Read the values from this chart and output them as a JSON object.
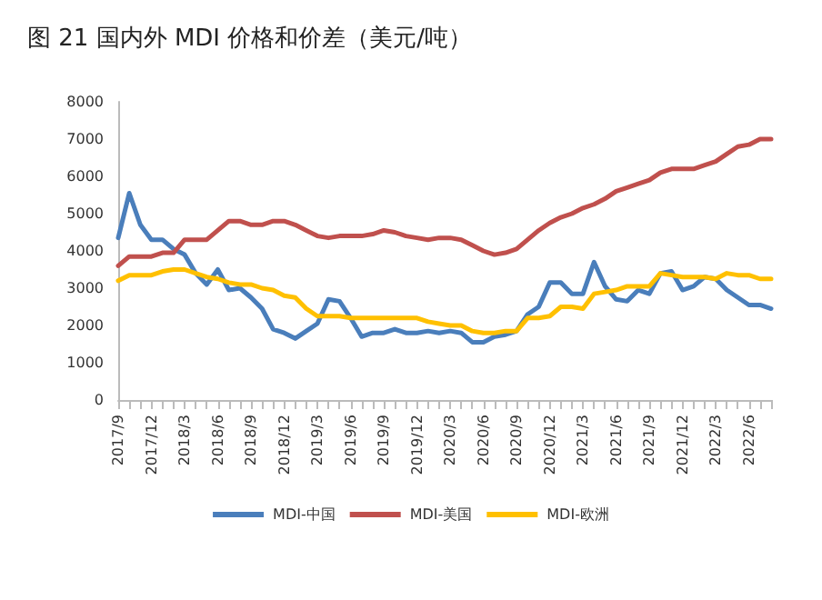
{
  "chart_data": {
    "type": "line",
    "title": "图 21 国内外 MDI 价格和价差（美元/吨）",
    "categories": [
      "2017/9",
      null,
      null,
      "2017/12",
      null,
      null,
      "2018/3",
      null,
      null,
      "2018/6",
      null,
      null,
      "2018/9",
      null,
      null,
      "2018/12",
      null,
      null,
      "2019/3",
      null,
      null,
      "2019/6",
      null,
      null,
      "2019/9",
      null,
      null,
      "2019/12",
      null,
      null,
      "2020/3",
      null,
      null,
      "2020/6",
      null,
      null,
      "2020/9",
      null,
      null,
      "2020/12",
      null,
      null,
      "2021/3",
      null,
      null,
      "2021/6",
      null,
      null,
      "2021/9",
      null,
      null,
      "2021/12",
      null,
      null,
      "2022/3",
      null,
      null,
      "2022/6",
      null,
      null
    ],
    "series": [
      {
        "name": "MDI-中国",
        "color": "#4a7ebb",
        "values": [
          4350,
          5550,
          4700,
          4300,
          4300,
          4050,
          3900,
          3400,
          3100,
          3500,
          2950,
          3000,
          2750,
          2450,
          1900,
          1800,
          1650,
          1850,
          2050,
          2700,
          2650,
          2200,
          1700,
          1800,
          1800,
          1900,
          1800,
          1800,
          1850,
          1800,
          1850,
          1800,
          1550,
          1550,
          1700,
          1750,
          1850,
          2300,
          2500,
          3150,
          3150,
          2850,
          2850,
          3700,
          3050,
          2700,
          2650,
          2950,
          2850,
          3400,
          3450,
          2950,
          3050,
          3300,
          3250,
          2950,
          2750,
          2550,
          2550,
          2450
        ]
      },
      {
        "name": "MDI-美国",
        "color": "#c0504d",
        "values": [
          3600,
          3850,
          3850,
          3850,
          3950,
          3950,
          4300,
          4300,
          4300,
          4550,
          4800,
          4800,
          4700,
          4700,
          4800,
          4800,
          4700,
          4550,
          4400,
          4350,
          4400,
          4400,
          4400,
          4450,
          4550,
          4500,
          4400,
          4350,
          4300,
          4350,
          4350,
          4300,
          4150,
          4000,
          3900,
          3950,
          4050,
          4300,
          4550,
          4750,
          4900,
          5000,
          5150,
          5250,
          5400,
          5600,
          5700,
          5800,
          5900,
          6100,
          6200,
          6200,
          6200,
          6300,
          6400,
          6600,
          6800,
          6850,
          7000,
          7000
        ]
      },
      {
        "name": "MDI-欧洲",
        "color": "#ffc000",
        "values": [
          3200,
          3350,
          3350,
          3350,
          3450,
          3500,
          3500,
          3400,
          3300,
          3250,
          3150,
          3100,
          3100,
          3000,
          2950,
          2800,
          2750,
          2450,
          2250,
          2250,
          2250,
          2200,
          2200,
          2200,
          2200,
          2200,
          2200,
          2200,
          2100,
          2050,
          2000,
          2000,
          1850,
          1800,
          1800,
          1850,
          1850,
          2200,
          2200,
          2250,
          2500,
          2500,
          2450,
          2850,
          2900,
          2950,
          3050,
          3050,
          3050,
          3400,
          3350,
          3300,
          3300,
          3300,
          3250,
          3400,
          3350,
          3350,
          3250,
          3250
        ]
      }
    ],
    "ylim": [
      0,
      8000
    ],
    "yticks": [
      0,
      1000,
      2000,
      3000,
      4000,
      5000,
      6000,
      7000,
      8000
    ],
    "legend": "bottom",
    "grid": false,
    "marker": "none",
    "line_style": "solid"
  }
}
